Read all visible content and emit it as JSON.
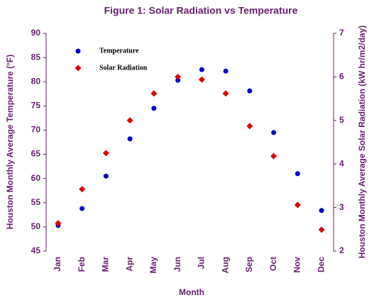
{
  "chart_data": {
    "type": "scatter",
    "title": "Figure 1:  Solar Radiation vs Temperature",
    "x_label": "Month",
    "y_label": "Houston Monthly  Average Temperature  (°F)",
    "y2_label": "Houston Monthly Average Solar Radiation (kW hr/m2/day)",
    "categories": [
      "Jan",
      "Feb",
      "Mar",
      "Apr",
      "May",
      "Jun",
      "Jul",
      "Aug",
      "Sep",
      "Oct",
      "Nov",
      "Dec"
    ],
    "series": [
      {
        "name": "Temperature",
        "color": "#0000cc",
        "marker": "circle",
        "values": [
          50.3,
          53.8,
          60.5,
          68.2,
          74.5,
          80.3,
          82.5,
          82.2,
          78.1,
          69.5,
          61.0,
          53.4
        ]
      },
      {
        "name": "Solar Radiation",
        "color": "#dd0000",
        "marker": "diamond",
        "axis": "y2",
        "values": [
          2.64,
          3.42,
          4.25,
          5.0,
          5.62,
          6.0,
          5.94,
          5.62,
          4.87,
          4.18,
          3.06,
          2.49
        ]
      }
    ],
    "ylim": [
      45,
      90
    ],
    "yticks": [
      45,
      50,
      55,
      60,
      65,
      70,
      75,
      80,
      85,
      90
    ],
    "y2lim": [
      2,
      7
    ],
    "y2ticks": [
      2,
      3,
      4,
      5,
      6,
      7
    ],
    "legend": "upper-left"
  }
}
